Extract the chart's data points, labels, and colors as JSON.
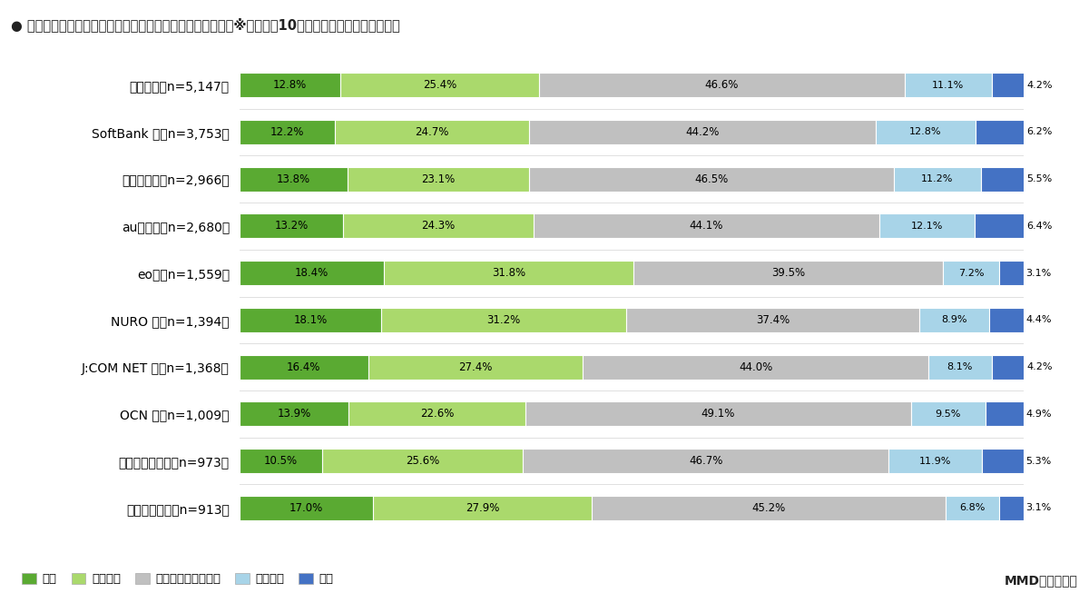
{
  "title": "● 光回線サービスのコストパフォーマンスの満足度（単数）※利用上位10サービスの光回線サービス別",
  "categories": [
    "ドコモ光（n=5,147）",
    "SoftBank 光（n=3,753）",
    "フレッツ光（n=2,966）",
    "auひかり（n=2,680）",
    "eo光（n=1,559）",
    "NURO 光（n=1,394）",
    "J:COM NET 光（n=1,368）",
    "OCN 光（n=1,009）",
    "ビッグローブ光（n=973）",
    "コミュファ光（n=913）"
  ],
  "series": {
    "満足": [
      12.8,
      12.2,
      13.8,
      13.2,
      18.4,
      18.1,
      16.4,
      13.9,
      10.5,
      17.0
    ],
    "やや満足": [
      25.4,
      24.7,
      23.1,
      24.3,
      31.8,
      31.2,
      27.4,
      22.6,
      25.6,
      27.9
    ],
    "どちらとも言えない": [
      46.6,
      44.2,
      46.5,
      44.1,
      39.5,
      37.4,
      44.0,
      49.1,
      46.7,
      45.2
    ],
    "やや不満": [
      11.1,
      12.8,
      11.2,
      12.1,
      7.2,
      8.9,
      8.1,
      9.5,
      11.9,
      6.8
    ],
    "不満": [
      4.2,
      6.2,
      5.5,
      6.4,
      3.1,
      4.4,
      4.2,
      4.9,
      5.3,
      3.1
    ]
  },
  "colors": {
    "満足": "#5aaa32",
    "やや満足": "#aad96c",
    "どちらとも言えない": "#c0c0c0",
    "やや不満": "#a8d4e8",
    "不満": "#4472c4"
  },
  "legend_labels": [
    "満足",
    "やや満足",
    "どちらとも言えない",
    "やや不満",
    "不満"
  ],
  "footer": "MMD研究所調べ",
  "background_color": "#ffffff",
  "bar_height": 0.52,
  "xlim_max": 100,
  "label_fontsize": 8.5,
  "category_fontsize": 10,
  "title_fontsize": 10.5
}
